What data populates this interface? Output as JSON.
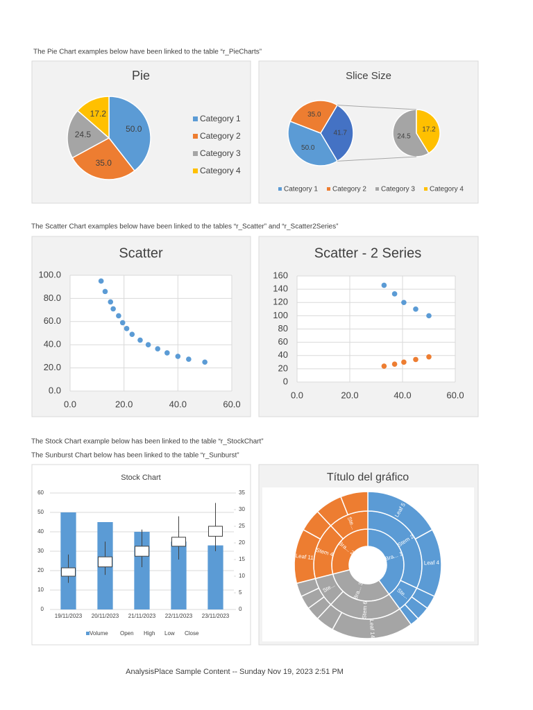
{
  "captions": [
    "The Pie Chart examples below have been linked to the table “r_PieCharts”",
    "The Scatter Chart examples below have been linked to the tables “r_Scatter” and “r_Scatter2Series”",
    "The Stock Chart example below has been linked to the table “r_StockChart”",
    "The Sunburst Chart below has been linked to the table “r_Sunburst”"
  ],
  "footer": "AnalysisPlace Sample Content -- Sunday Nov 19, 2023 2:51 PM",
  "chart_data": [
    {
      "type": "pie",
      "title": "Pie",
      "categories": [
        "Category 1",
        "Category 2",
        "Category 3",
        "Category 4"
      ],
      "values": [
        50.0,
        35.0,
        24.5,
        17.2
      ],
      "value_labels": [
        "50.0",
        "35.0",
        "24.5",
        "17.2"
      ],
      "colors": [
        "#5b9bd5",
        "#ed7d31",
        "#a5a5a5",
        "#ffc000"
      ],
      "legend": "right"
    },
    {
      "type": "pie-of-pie",
      "title": "Slice Size",
      "categories": [
        "Category 1",
        "Category 2",
        "Category 3",
        "Category 4"
      ],
      "values": [
        50.0,
        35.0,
        24.5,
        17.2
      ],
      "value_labels": [
        "50.0",
        "35.0",
        "24.5",
        "17.2"
      ],
      "colors": [
        "#5b9bd5",
        "#ed7d31",
        "#a5a5a5",
        "#ffc000"
      ],
      "second_plot_values": 2,
      "other_value": 41.7,
      "other_label": "41.7",
      "other_color": "#4472c4",
      "legend": "bottom"
    },
    {
      "type": "scatter",
      "title": "Scatter",
      "x": [
        11.5,
        13,
        15,
        16,
        18,
        19.5,
        21,
        23,
        26,
        29,
        32.5,
        36,
        40,
        44,
        50
      ],
      "series": [
        {
          "color": "#5b9bd5",
          "values": [
            95,
            86,
            77,
            71,
            65,
            59,
            54,
            49,
            44,
            40,
            36.5,
            33,
            30,
            27.5,
            25
          ]
        }
      ],
      "xlim": [
        0,
        60
      ],
      "xticks": [
        {
          "value": 0,
          "label": "0.0"
        },
        {
          "value": 20,
          "label": "20.0"
        },
        {
          "value": 40,
          "label": "40.0"
        },
        {
          "value": 60,
          "label": "60.0"
        }
      ],
      "ylim": [
        0,
        100
      ],
      "yticks": [
        {
          "value": 0,
          "label": "0.0"
        },
        {
          "value": 20,
          "label": "20.0"
        },
        {
          "value": 40,
          "label": "40.0"
        },
        {
          "value": 60,
          "label": "60.0"
        },
        {
          "value": 80,
          "label": "80.0"
        },
        {
          "value": 100,
          "label": "100.0"
        }
      ],
      "grid": true
    },
    {
      "type": "scatter",
      "title": "Scatter - 2 Series",
      "x": [
        33,
        37,
        40.5,
        45,
        50
      ],
      "series": [
        {
          "color": "#5b9bd5",
          "values": [
            146,
            133,
            120,
            110,
            100
          ]
        },
        {
          "color": "#ed7d31",
          "values": [
            24,
            27,
            30,
            34,
            38
          ]
        }
      ],
      "xlim": [
        0,
        60
      ],
      "xticks": [
        {
          "value": 0,
          "label": "0.0"
        },
        {
          "value": 20,
          "label": "20.0"
        },
        {
          "value": 40,
          "label": "40.0"
        },
        {
          "value": 60,
          "label": "60.0"
        }
      ],
      "ylim": [
        0,
        160
      ],
      "yticks": [
        0,
        20,
        40,
        60,
        80,
        100,
        120,
        140,
        160
      ],
      "grid": true
    },
    {
      "type": "stock",
      "title": "Stock Chart",
      "categories": [
        "19/11/2023",
        "20/11/2023",
        "21/11/2023",
        "22/11/2023",
        "23/11/2023"
      ],
      "series": [
        {
          "name": "Volume",
          "color": "#5b9bd5",
          "values": [
            50,
            45,
            40,
            35,
            33
          ]
        },
        {
          "name": "Open",
          "axis": "y2",
          "values": [
            10,
            12.8,
            16,
            19,
            22
          ]
        },
        {
          "name": "High",
          "axis": "y2",
          "values": [
            16.5,
            20.4,
            24,
            28,
            32
          ]
        },
        {
          "name": "Low",
          "axis": "y2",
          "values": [
            8,
            10.4,
            12.7,
            15,
            17.5
          ]
        },
        {
          "name": "Close",
          "axis": "y2",
          "values": [
            12.5,
            15.8,
            19,
            21.7,
            25
          ]
        }
      ],
      "ylim": [
        0,
        60
      ],
      "yticks": [
        0,
        10,
        20,
        30,
        40,
        50,
        60
      ],
      "y2lim": [
        0,
        35
      ],
      "y2ticks": [
        0,
        5,
        10,
        15,
        20,
        25,
        30,
        35
      ],
      "grid": true,
      "legend": "bottom"
    },
    {
      "type": "sunburst",
      "title": "Título del gráfico",
      "nodes": [
        {
          "label": "Bra... 1",
          "color": "#5b9bd5",
          "children": [
            {
              "label": "Stem 2",
              "children": [
                {
                  "label": "Leaf 5",
                  "value": 17
                },
                {
                  "label": "Leaf 4",
                  "value": 15
                }
              ]
            },
            {
              "label": "Ste...",
              "children": [
                {
                  "label": null,
                  "value": 3
                },
                {
                  "label": null,
                  "value": 3
                },
                {
                  "label": null,
                  "value": 2
                }
              ]
            }
          ]
        },
        {
          "label": "Bra... 3",
          "color": "#a5a5a5",
          "children": [
            {
              "label": "Stem 6",
              "children": [
                {
                  "label": "Leaf 14",
                  "value": 18
                },
                {
                  "label": null,
                  "value": 4
                }
              ]
            },
            {
              "label": "Ste...",
              "children": [
                {
                  "label": null,
                  "value": 3
                },
                {
                  "label": null,
                  "value": 3
                },
                {
                  "label": null,
                  "value": 3
                }
              ]
            }
          ]
        },
        {
          "label": "Bra... 2",
          "color": "#ed7d31",
          "children": [
            {
              "label": "Stem 4",
              "children": [
                {
                  "label": "Leaf 11",
                  "value": 12
                },
                {
                  "label": null,
                  "value": 5
                }
              ]
            },
            {
              "label": "Ste...",
              "children": [
                {
                  "label": null,
                  "value": 6
                },
                {
                  "label": null,
                  "value": 6
                }
              ]
            }
          ]
        }
      ]
    }
  ]
}
